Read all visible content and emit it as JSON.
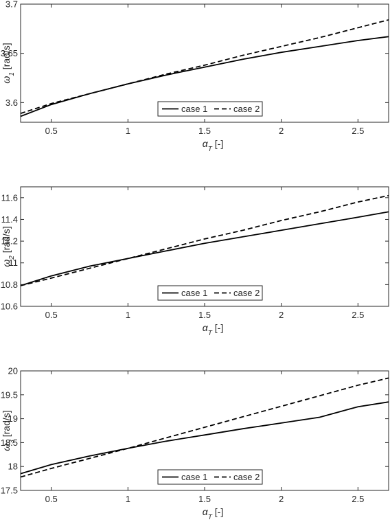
{
  "chart_data": [
    {
      "type": "line",
      "title": "",
      "xlabel": "α_T [-]",
      "ylabel": "ω_1 [rad/s]",
      "xlim": [
        0.3,
        2.7
      ],
      "ylim": [
        3.58,
        3.7
      ],
      "xticks": [
        0.5,
        1,
        1.5,
        2,
        2.5
      ],
      "xtick_labels": [
        "0.5",
        "1",
        "1.5",
        "2",
        "2.5"
      ],
      "yticks": [
        3.6,
        3.65,
        3.7
      ],
      "ytick_labels": [
        "3.6",
        "3.65",
        "3.7"
      ],
      "grid": false,
      "legend_position": "lower-center",
      "legend_orientation": "horizontal",
      "series": [
        {
          "name": "case 1",
          "style": "solid",
          "x": [
            0.3,
            0.5,
            0.75,
            1.0,
            1.25,
            1.5,
            1.75,
            2.0,
            2.25,
            2.5,
            2.7
          ],
          "y": [
            3.586,
            3.598,
            3.609,
            3.619,
            3.628,
            3.636,
            3.644,
            3.651,
            3.657,
            3.663,
            3.667
          ]
        },
        {
          "name": "case 2",
          "style": "dashed",
          "x": [
            0.3,
            0.5,
            0.75,
            1.0,
            1.25,
            1.5,
            1.75,
            2.0,
            2.25,
            2.5,
            2.7
          ],
          "y": [
            3.589,
            3.599,
            3.609,
            3.619,
            3.629,
            3.638,
            3.648,
            3.657,
            3.666,
            3.676,
            3.684
          ]
        }
      ]
    },
    {
      "type": "line",
      "title": "",
      "xlabel": "α_T [-]",
      "ylabel": "ω_2 [rad/s]",
      "xlim": [
        0.3,
        2.7
      ],
      "ylim": [
        10.6,
        11.7
      ],
      "xticks": [
        0.5,
        1,
        1.5,
        2,
        2.5
      ],
      "xtick_labels": [
        "0.5",
        "1",
        "1.5",
        "2",
        "2.5"
      ],
      "yticks": [
        10.6,
        10.8,
        11,
        11.2,
        11.4,
        11.6
      ],
      "ytick_labels": [
        "10.6",
        "10.8",
        "11",
        "11.2",
        "11.4",
        "11.6"
      ],
      "grid": false,
      "legend_position": "lower-center",
      "legend_orientation": "horizontal",
      "series": [
        {
          "name": "case 1",
          "style": "solid",
          "x": [
            0.3,
            0.5,
            0.75,
            1.0,
            1.25,
            1.5,
            1.75,
            2.0,
            2.25,
            2.5,
            2.7
          ],
          "y": [
            10.79,
            10.88,
            10.97,
            11.04,
            11.11,
            11.18,
            11.24,
            11.3,
            11.36,
            11.42,
            11.47
          ]
        },
        {
          "name": "case 2",
          "style": "dashed",
          "x": [
            0.3,
            0.5,
            0.75,
            1.0,
            1.25,
            1.5,
            1.75,
            2.0,
            2.25,
            2.5,
            2.7
          ],
          "y": [
            10.79,
            10.86,
            10.95,
            11.04,
            11.13,
            11.22,
            11.3,
            11.39,
            11.47,
            11.56,
            11.62
          ]
        }
      ]
    },
    {
      "type": "line",
      "title": "",
      "xlabel": "α_T [-]",
      "ylabel": "ω_3 [rad/s]",
      "xlim": [
        0.3,
        2.7
      ],
      "ylim": [
        17.5,
        20
      ],
      "xticks": [
        0.5,
        1,
        1.5,
        2,
        2.5
      ],
      "xtick_labels": [
        "0.5",
        "1",
        "1.5",
        "2",
        "2.5"
      ],
      "yticks": [
        17.5,
        18,
        18.5,
        19,
        19.5,
        20
      ],
      "ytick_labels": [
        "17.5",
        "18",
        "18.5",
        "19",
        "19.5",
        "20"
      ],
      "grid": false,
      "legend_position": "lower-center",
      "legend_orientation": "horizontal",
      "series": [
        {
          "name": "case 1",
          "style": "solid",
          "x": [
            0.3,
            0.5,
            0.75,
            1.0,
            1.25,
            1.5,
            1.75,
            2.0,
            2.25,
            2.5,
            2.7
          ],
          "y": [
            17.85,
            18.04,
            18.22,
            18.38,
            18.53,
            18.66,
            18.79,
            18.91,
            19.03,
            19.25,
            19.35
          ]
        },
        {
          "name": "case 2",
          "style": "dashed",
          "x": [
            0.3,
            0.5,
            0.75,
            1.0,
            1.25,
            1.5,
            1.75,
            2.0,
            2.25,
            2.5,
            2.7
          ],
          "y": [
            17.78,
            17.96,
            18.17,
            18.38,
            18.6,
            18.82,
            19.04,
            19.26,
            19.48,
            19.7,
            19.85
          ]
        }
      ]
    }
  ]
}
